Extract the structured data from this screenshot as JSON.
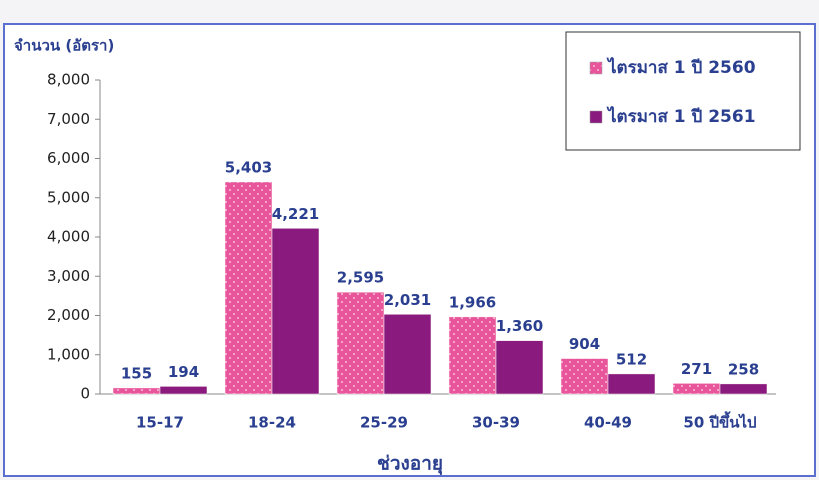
{
  "chart_data": {
    "type": "bar",
    "y_label": "จำนวน (อัตรา)",
    "x_label": "ช่วงอายุ",
    "categories": [
      "15-17",
      "18-24",
      "25-29",
      "30-39",
      "40-49",
      "50 ปีขึ้นไป"
    ],
    "series": [
      {
        "name": "ไตรมาส 1 ปี 2560",
        "color": "#e8559a",
        "pattern": "dots",
        "values": [
          155,
          5403,
          2595,
          1966,
          904,
          271
        ],
        "value_labels": [
          "155",
          "5,403",
          "2,595",
          "1,966",
          "904",
          "271"
        ]
      },
      {
        "name": "ไตรมาส 1 ปี 2561",
        "color": "#8b1a7f",
        "values": [
          194,
          4221,
          2031,
          1360,
          512,
          258
        ],
        "value_labels": [
          "194",
          "4,221",
          "2,031",
          "1,360",
          "512",
          "258"
        ]
      }
    ],
    "ylim": [
      0,
      8000
    ],
    "yticks": [
      0,
      {
        "value": 1000,
        "label": "1,000"
      },
      {
        "value": 2000,
        "label": "2,000"
      },
      {
        "value": 3000,
        "label": "3,000"
      },
      {
        "value": 4000,
        "label": "4,000"
      },
      {
        "value": 5000,
        "label": "5,000"
      },
      {
        "value": 6000,
        "label": "6,000"
      },
      {
        "value": 7000,
        "label": "7,000"
      },
      {
        "value": 8000,
        "label": "8,000"
      }
    ],
    "grid": false,
    "legend": "top-right"
  }
}
